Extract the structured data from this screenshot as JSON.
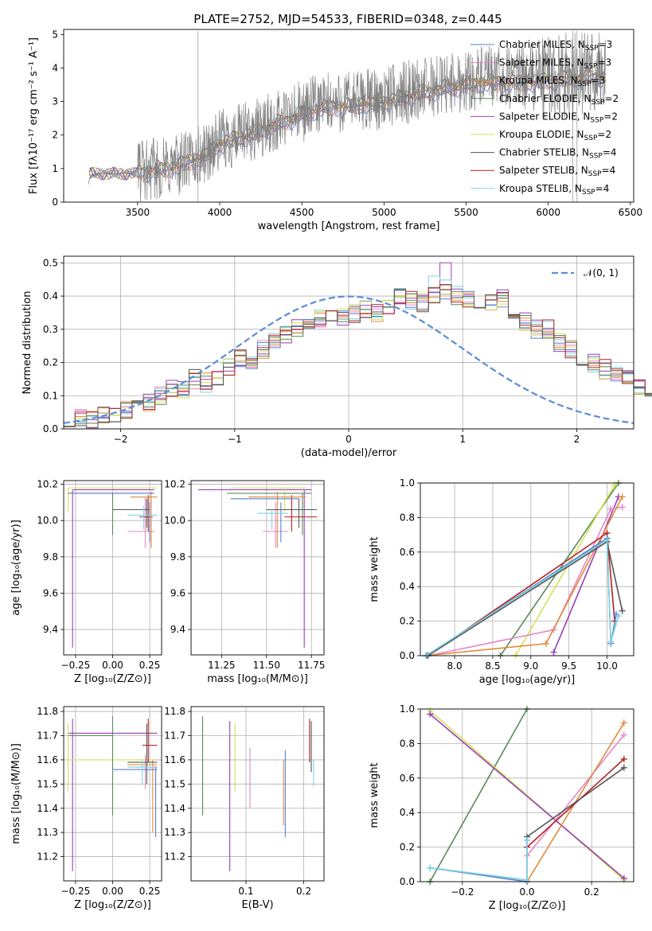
{
  "chart_data": [
    {
      "type": "line",
      "title": "PLATE=2752, MJD=54533, FIBERID=0348, z=0.445",
      "xlabel": "wavelength [Angstrom, rest frame]",
      "ylabel": "Flux [fλ10⁻¹⁷ erg cm⁻² s⁻¹ A⁻¹]",
      "xlim": [
        3050,
        6520
      ],
      "ylim": [
        0,
        5.15
      ],
      "xticks": [
        "3500",
        "4000",
        "4500",
        "5000",
        "5500",
        "6000",
        "6500"
      ],
      "yticks": [
        "0",
        "1",
        "2",
        "3",
        "4",
        "5"
      ],
      "legend": "top-right",
      "data_note": "observed spectrum (grey) plus 9 model fits",
      "spectrum_anchor_points": {
        "x": [
          3200,
          3210,
          3250,
          3300,
          3400,
          3500,
          3700,
          3900,
          4000,
          4200,
          4400,
          4600,
          4800,
          5000,
          5200,
          5400,
          5600,
          5800,
          6000,
          6200,
          6350
        ],
        "y": [
          0.55,
          0.75,
          0.85,
          0.85,
          0.85,
          0.9,
          1.05,
          1.4,
          1.8,
          2.1,
          2.5,
          2.9,
          3.0,
          3.1,
          3.35,
          3.55,
          3.7,
          3.7,
          3.75,
          3.85,
          3.9
        ]
      },
      "series": [
        {
          "name": "Chabrier MILES, N",
          "sub": "SSP",
          "suffix": "=3",
          "color": "#5a7fd0"
        },
        {
          "name": "Salpeter MILES, N",
          "sub": "SSP",
          "suffix": "=3",
          "color": "#e688c6"
        },
        {
          "name": "Kroupa MILES, N",
          "sub": "SSP",
          "suffix": "=3",
          "color": "#e08a3c"
        },
        {
          "name": "Chabrier ELODIE, N",
          "sub": "SSP",
          "suffix": "=2",
          "color": "#5a8a5a"
        },
        {
          "name": "Salpeter ELODIE, N",
          "sub": "SSP",
          "suffix": "=2",
          "color": "#9b3fb5"
        },
        {
          "name": "Kroupa ELODIE, N",
          "sub": "SSP",
          "suffix": "=2",
          "color": "#d4e157"
        },
        {
          "name": "Chabrier STELIB, N",
          "sub": "SSP",
          "suffix": "=4",
          "color": "#555555"
        },
        {
          "name": "Salpeter STELIB, N",
          "sub": "SSP",
          "suffix": "=4",
          "color": "#b22222"
        },
        {
          "name": "Kroupa STELIB, N",
          "sub": "SSP",
          "suffix": "=4",
          "color": "#7ed3e0"
        }
      ]
    },
    {
      "type": "line",
      "xlabel": "(data-model)/error",
      "ylabel": "Normed distribution",
      "xlim": [
        -2.5,
        2.5
      ],
      "ylim": [
        0,
        0.52
      ],
      "xticks": [
        "−2",
        "−1",
        "0",
        "1",
        "2"
      ],
      "yticks": [
        "0.0",
        "0.1",
        "0.2",
        "0.3",
        "0.4",
        "0.5"
      ],
      "legend_label": "𝒩(0, 1)",
      "bins_from": -2.5,
      "bin_width": 0.1,
      "histogram_values": [
        0.02,
        0.03,
        0.03,
        0.04,
        0.05,
        0.06,
        0.08,
        0.08,
        0.1,
        0.12,
        0.12,
        0.15,
        0.14,
        0.16,
        0.19,
        0.21,
        0.21,
        0.24,
        0.26,
        0.28,
        0.3,
        0.31,
        0.33,
        0.33,
        0.34,
        0.35,
        0.36,
        0.35,
        0.37,
        0.4,
        0.39,
        0.38,
        0.4,
        0.42,
        0.4,
        0.39,
        0.38,
        0.38,
        0.39,
        0.35,
        0.32,
        0.3,
        0.3,
        0.26,
        0.24,
        0.22,
        0.2,
        0.18,
        0.17,
        0.15,
        0.13,
        0.12,
        0.1,
        0.09,
        0.09,
        0.08,
        0.08,
        0.06,
        0.05,
        0.04
      ],
      "gaussian": {
        "mean": 0,
        "sigma": 1
      }
    },
    {
      "type": "scatter",
      "xlabel": "Z [log₁₀(Z/Z⊙)]",
      "ylabel": "age  [log₁₀(age/yr)]",
      "xlim": [
        -0.33,
        0.33
      ],
      "ylim": [
        9.26,
        10.22
      ],
      "xticks": [
        "−0.25",
        "0.00",
        "0.25"
      ],
      "yticks": [
        "9.4",
        "9.6",
        "9.8",
        "10.0",
        "10.2"
      ]
    },
    {
      "type": "scatter",
      "xlabel": "mass [log₁₀(M/M⊙)]",
      "xlim": [
        11.08,
        11.82
      ],
      "ylim": [
        9.26,
        10.22
      ],
      "xticks": [
        "11.25",
        "11.50",
        "11.75"
      ],
      "yticks": [
        "9.4",
        "9.6",
        "9.8",
        "10.0",
        "10.2"
      ]
    },
    {
      "type": "line",
      "xlabel": "age  [log₁₀(age/yr)]",
      "ylabel": "mass weight",
      "xlim": [
        7.55,
        10.35
      ],
      "ylim": [
        0,
        1
      ],
      "xticks": [
        "8.0",
        "8.5",
        "9.0",
        "9.5",
        "10.0"
      ],
      "yticks": [
        "0.0",
        "0.2",
        "0.4",
        "0.6",
        "0.8",
        "1.0"
      ]
    },
    {
      "type": "scatter",
      "xlabel": "Z [log₁₀(Z/Z⊙)]",
      "ylabel": "mass [log₁₀(M/M⊙)]",
      "xlim": [
        -0.33,
        0.33
      ],
      "ylim": [
        11.1,
        11.82
      ],
      "xticks": [
        "−0.25",
        "0.00",
        "0.25"
      ],
      "yticks": [
        "11.2",
        "11.3",
        "11.4",
        "11.5",
        "11.6",
        "11.7",
        "11.8"
      ]
    },
    {
      "type": "scatter",
      "xlabel": "E(B-V)",
      "xlim": [
        0.005,
        0.235
      ],
      "ylim": [
        11.1,
        11.82
      ],
      "xticks": [
        "0.1",
        "0.2"
      ],
      "yticks": [
        "11.2",
        "11.3",
        "11.4",
        "11.5",
        "11.6",
        "11.7",
        "11.8"
      ]
    },
    {
      "type": "line",
      "xlabel": "Z [log₁₀(Z/Z⊙)]",
      "ylabel": "mass weight",
      "xlim": [
        -0.33,
        0.33
      ],
      "ylim": [
        0,
        1
      ],
      "xticks": [
        "−0.2",
        "0.0",
        "0.2"
      ],
      "yticks": [
        "0.0",
        "0.2",
        "0.4",
        "0.6",
        "0.8",
        "1.0"
      ]
    }
  ]
}
